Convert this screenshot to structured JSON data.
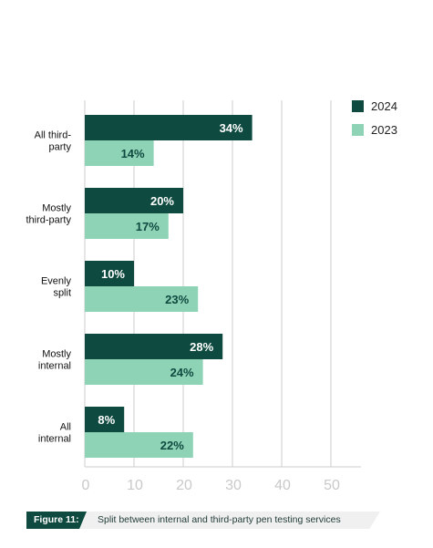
{
  "chart_data": {
    "type": "bar",
    "orientation": "horizontal",
    "categories": [
      [
        "All third-",
        "party"
      ],
      [
        "Mostly",
        "third-party"
      ],
      [
        "Evenly",
        "split"
      ],
      [
        "Mostly",
        "internal"
      ],
      [
        "All",
        "internal"
      ]
    ],
    "series": [
      {
        "name": "2024",
        "values": [
          34,
          20,
          10,
          28,
          8
        ],
        "color": "#0e4a3f",
        "label_color": "#ffffff"
      },
      {
        "name": "2023",
        "values": [
          14,
          17,
          23,
          24,
          22
        ],
        "color": "#8fd3b7",
        "label_color": "#0e4a3f"
      }
    ],
    "value_suffix": "%",
    "xlim": [
      0,
      50
    ],
    "xticks": [
      0,
      10,
      20,
      30,
      40,
      50
    ],
    "grid": true,
    "legend": "top-right"
  },
  "caption": {
    "tag": "Figure 11:",
    "text": "Split between internal and third-party pen testing services"
  }
}
